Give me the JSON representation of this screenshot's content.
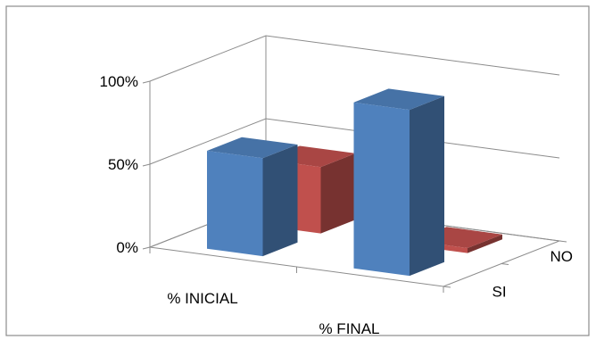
{
  "chart_data": {
    "type": "bar",
    "title": "",
    "xlabel": "",
    "ylabel": "",
    "categories": [
      "% INICIAL",
      "% FINAL"
    ],
    "series": [
      {
        "name": "SI",
        "values": [
          59,
          100
        ],
        "color": "#4f81bd"
      },
      {
        "name": "NO",
        "values": [
          40,
          3
        ],
        "color": "#c0504d"
      }
    ],
    "y_ticks": [
      "0%",
      "50%",
      "100%"
    ],
    "ylim": [
      0,
      100
    ],
    "grid": true,
    "projection": "3d",
    "legend": "none"
  }
}
